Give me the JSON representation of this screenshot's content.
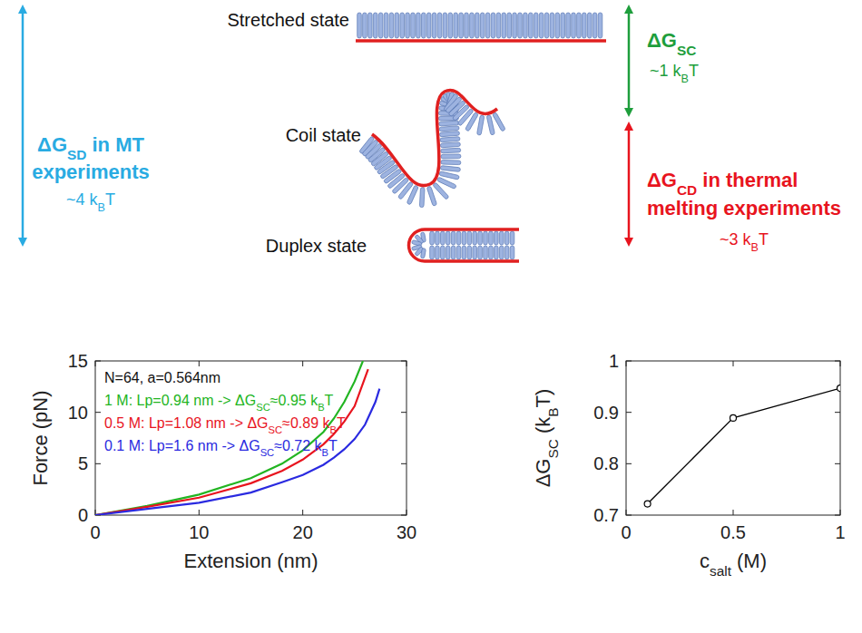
{
  "diagram": {
    "states": [
      {
        "label": "Stretched state"
      },
      {
        "label": "Coil state"
      },
      {
        "label": "Duplex state"
      }
    ],
    "arrows": [
      {
        "lines": [
          "ΔGSD in MT",
          "experiments"
        ],
        "value_text": "~4 kBT",
        "color": "#29abe2"
      },
      {
        "lines": [
          "ΔGSC"
        ],
        "value_text": "~1 kBT",
        "color": "#1e9e3c"
      },
      {
        "lines": [
          "ΔGCD in thermal",
          "melting experiments"
        ],
        "value_text": "~3 kBT",
        "color": "#e8141e"
      }
    ]
  },
  "chart_data": [
    {
      "type": "line",
      "x_label": "Extension (nm)",
      "y_label": "Force (pN)",
      "annotations": [
        "N=64, a=0.564nm"
      ],
      "legend": "upper left",
      "xlim": [
        0,
        30
      ],
      "xticks": [
        0,
        10,
        20,
        30
      ],
      "ylim": [
        0,
        15
      ],
      "yticks": [
        0,
        5,
        10,
        15
      ],
      "grid": false,
      "series": [
        {
          "name": "1 M: Lp=0.94 nm -> ΔGSC≈0.95 kBT",
          "color": "#22b522",
          "x": [
            0,
            5,
            10,
            15,
            18,
            20,
            22,
            23,
            24,
            25,
            25.8
          ],
          "values": [
            0,
            0.9,
            2.0,
            3.6,
            5.0,
            6.3,
            8.1,
            9.4,
            11.0,
            13.0,
            15.0
          ]
        },
        {
          "name": "0.5 M: Lp=1.08 nm -> ΔGSC≈0.89 kBT",
          "color": "#e8141e",
          "x": [
            0,
            5,
            10,
            15,
            18,
            20,
            22,
            23,
            24,
            25,
            26.3
          ],
          "values": [
            0,
            0.8,
            1.7,
            3.1,
            4.3,
            5.4,
            6.9,
            7.9,
            9.1,
            10.6,
            14.2
          ]
        },
        {
          "name": "0.1 M: Lp=1.6 nm -> ΔGSC≈0.72 kBT",
          "color": "#2a2ae0",
          "x": [
            0,
            5,
            10,
            15,
            18,
            20,
            22,
            23,
            24,
            25,
            26,
            27,
            27.4
          ],
          "values": [
            0,
            0.6,
            1.2,
            2.2,
            3.2,
            3.9,
            4.9,
            5.6,
            6.4,
            7.4,
            8.8,
            11.0,
            12.3
          ]
        }
      ]
    },
    {
      "type": "line",
      "x_label": "csalt (M)",
      "y_label": "ΔGSC (kBT)",
      "xlim": [
        0,
        1
      ],
      "xticks": [
        0,
        0.5,
        1
      ],
      "ylim": [
        0.7,
        1
      ],
      "yticks": [
        0.7,
        0.8,
        0.9,
        1
      ],
      "grid": false,
      "marker": "circle",
      "color": "#000000",
      "x": [
        0.1,
        0.5,
        1
      ],
      "values": [
        0.722,
        0.889,
        0.947
      ]
    }
  ]
}
